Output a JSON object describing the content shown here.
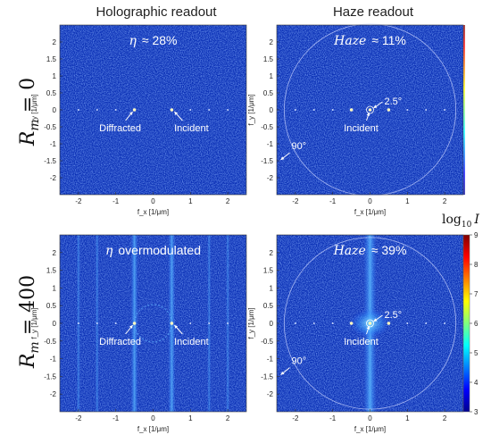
{
  "columns": [
    "Holographic readout",
    "Haze readout"
  ],
  "rows": [
    {
      "label": "R_m = 0",
      "label_main": "R",
      "label_sub": "m",
      "label_eq": " = 0"
    },
    {
      "label": "R_m = 400",
      "label_main": "R",
      "label_sub": "m",
      "label_eq": " = 400"
    }
  ],
  "axis": {
    "xlabel": "f_x [1/μm]",
    "ylabel": "f_y [1/μm]",
    "xticks": [
      "-2",
      "-1",
      "0",
      "1",
      "2"
    ],
    "yticks": [
      "2",
      "1.5",
      "1",
      "0.5",
      "0",
      "-0.5",
      "-1",
      "-1.5",
      "-2"
    ],
    "range": [
      -2.5,
      2.5
    ]
  },
  "panels": [
    {
      "header": "η ≈ 28%",
      "header_symbol": "η",
      "header_value": "≈ 28%",
      "annotations": [
        {
          "text": "Diffracted",
          "x": -0.5,
          "y": 0
        },
        {
          "text": "Incident",
          "x": 0.5,
          "y": 0
        }
      ]
    },
    {
      "header": "Haze ≈ 11%",
      "header_symbol": "Haze",
      "header_value": "≈ 11%",
      "annotations": [
        {
          "text": "2.5°",
          "x": 0,
          "y": 0
        },
        {
          "text": "Incident",
          "x": 0,
          "y": 0
        },
        {
          "text": "90°",
          "x": -2.2,
          "y": -1.0
        }
      ]
    },
    {
      "header": "η overmodulated",
      "header_symbol": "η",
      "header_value": "overmodulated",
      "annotations": [
        {
          "text": "Diffracted",
          "x": -0.5,
          "y": 0
        },
        {
          "text": "Incident",
          "x": 0.5,
          "y": 0
        }
      ]
    },
    {
      "header": "Haze ≈ 39%",
      "header_symbol": "Haze",
      "header_value": "≈ 39%",
      "annotations": [
        {
          "text": "2.5°",
          "x": 0,
          "y": 0
        },
        {
          "text": "Incident",
          "x": 0,
          "y": 0
        },
        {
          "text": "90°",
          "x": -2.2,
          "y": -1.0
        }
      ]
    }
  ],
  "colorbar": {
    "title": "log₁₀ I",
    "title_main": "log",
    "title_sub": "10",
    "title_var": "I",
    "ticks": [
      "9",
      "8",
      "7",
      "6",
      "5",
      "4",
      "3"
    ],
    "range": [
      3,
      9
    ],
    "colormap": "jet"
  },
  "colors": {
    "background": "#0a2fb5",
    "background_dark": "#0723a0",
    "ring": "#c9d3ff",
    "streak": "#3d9bff"
  }
}
